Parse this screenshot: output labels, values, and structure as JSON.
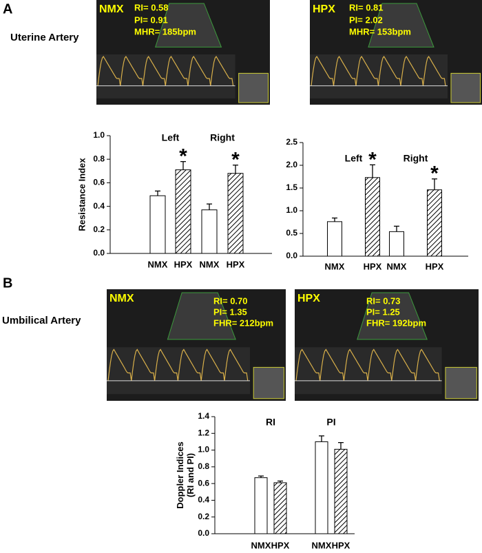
{
  "panel_labels": [
    "A",
    "B"
  ],
  "section_titles": [
    "Uterine Artery",
    "Umbilical Artery"
  ],
  "images": [
    {
      "label": "NMX",
      "lines": [
        "RI= 0.58",
        "PI= 0.91",
        "MHR= 185bpm"
      ]
    },
    {
      "label": "HPX",
      "lines": [
        "RI= 0.81",
        "PI= 2.02",
        "MHR= 153bpm"
      ]
    },
    {
      "label": "NMX",
      "lines": [
        "RI= 0.70",
        "PI= 1.35",
        "FHR= 212bpm"
      ]
    },
    {
      "label": "HPX",
      "lines": [
        "RI= 0.73",
        "PI= 1.25",
        "FHR= 192bpm"
      ]
    }
  ],
  "chart_data": [
    {
      "type": "bar",
      "ylabel": [
        "Resistance Index"
      ],
      "groups": [
        "Left",
        "Right"
      ],
      "categories": [
        "NMX",
        "HPX",
        "NMX",
        "HPX"
      ],
      "values": [
        0.49,
        0.71,
        0.37,
        0.68
      ],
      "errors": [
        0.04,
        0.07,
        0.05,
        0.07
      ],
      "bar_styles": [
        "open",
        "hatched",
        "open",
        "hatched"
      ],
      "markers": [
        null,
        "*",
        null,
        "*"
      ],
      "ylim": [
        0,
        1.0
      ],
      "yticks": [
        {
          "value": 0,
          "label": "0.0"
        },
        0.2,
        0.4,
        0.6,
        0.8,
        {
          "value": 1.0,
          "label": "1.0"
        }
      ]
    },
    {
      "type": "bar",
      "groups": [
        "Left",
        "Right"
      ],
      "categories": [
        "NMX",
        "HPX",
        "NMX",
        "HPX"
      ],
      "values": [
        0.76,
        1.73,
        0.54,
        1.46
      ],
      "errors": [
        0.08,
        0.28,
        0.12,
        0.24
      ],
      "bar_styles": [
        "open",
        "hatched",
        "open",
        "hatched"
      ],
      "markers": [
        null,
        "*",
        null,
        "*"
      ],
      "ylim": [
        0,
        2.5
      ],
      "yticks": [
        {
          "value": 0,
          "label": "0.0"
        },
        0.5,
        {
          "value": 1.0,
          "label": "1.0"
        },
        1.5,
        {
          "value": 2.0,
          "label": "2.0"
        },
        2.5
      ]
    },
    {
      "type": "bar",
      "ylabel": [
        "Doppler Indices",
        "(RI and PI)"
      ],
      "groups": [
        "RI",
        "PI"
      ],
      "categories": [
        "NMX",
        "HPX",
        "NMX",
        "HPX"
      ],
      "values": [
        0.67,
        0.61,
        1.1,
        1.01
      ],
      "errors": [
        0.02,
        0.02,
        0.07,
        0.08
      ],
      "bar_styles": [
        "open",
        "hatched",
        "open",
        "hatched"
      ],
      "ylim": [
        0,
        1.4
      ],
      "yticks": [
        {
          "value": 0,
          "label": "0.0"
        },
        0.2,
        0.4,
        0.6,
        0.8,
        {
          "value": 1.0,
          "label": "1.0"
        },
        1.2,
        1.4
      ]
    }
  ]
}
